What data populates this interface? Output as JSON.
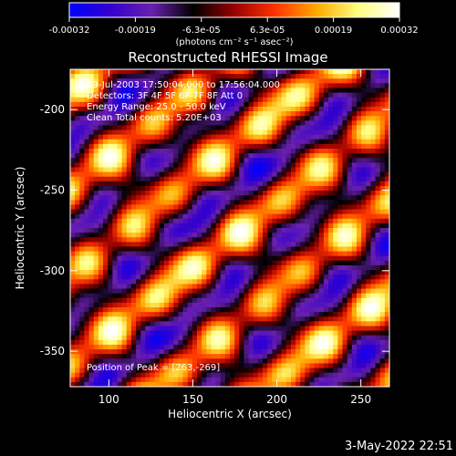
{
  "chart_data": {
    "type": "heatmap",
    "title": "Reconstructed RHESSI Image",
    "xlabel": "Heliocentric X (arcsec)",
    "ylabel": "Heliocentric Y (arcsec)",
    "xlim": [
      77,
      267
    ],
    "ylim": [
      -372,
      -175
    ],
    "x_ticks": [
      100,
      150,
      200,
      250
    ],
    "y_ticks": [
      -200,
      -250,
      -300,
      -350
    ],
    "colorbar": {
      "ticks": [
        "-0.00032",
        "-0.00019",
        "-6.3e-05",
        "6.3e-05",
        "0.00019",
        "0.00032"
      ],
      "unit_label": "(photons cm⁻² s⁻¹ asec⁻²)",
      "range": [
        -0.00032,
        0.00032
      ]
    },
    "annotations": {
      "time": "19-Jul-2003 17:50:04.000 to 17:56:04.000",
      "detectors": "Detectors: 3F 4F 5F 6F 7F 8F  Att 0",
      "energy": "Energy Range: 25.0 - 50.0 keV",
      "clean": "Clean    Total counts: 5.20E+03",
      "peak": "Position of Peak = [263,-269]"
    },
    "colors": {
      "colorbar_stops": [
        "#0000ff",
        "#3300cc",
        "#6a20b0",
        "#000000",
        "#990000",
        "#ff3300",
        "#ffaa00",
        "#ffff80",
        "#ffffff"
      ],
      "background": "#000000",
      "foreground": "#ffffff"
    }
  },
  "footer": {
    "date": "3-May-2022 22:51"
  }
}
